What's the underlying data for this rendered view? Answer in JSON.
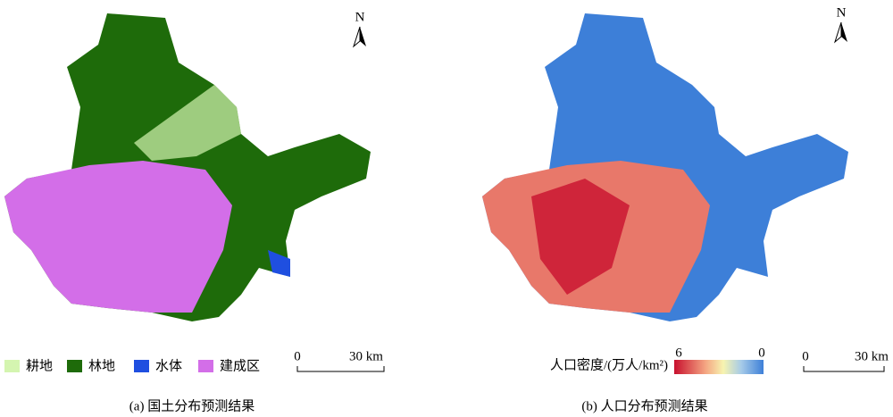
{
  "left_panel": {
    "north": "N",
    "legend": [
      {
        "name": "耕地",
        "color": "#d4f5b0"
      },
      {
        "name": "林地",
        "color": "#1e6b0a"
      },
      {
        "name": "水体",
        "color": "#1f4fe0"
      },
      {
        "name": "建成区",
        "color": "#d36ee8"
      }
    ],
    "scale_bar": {
      "start": "0",
      "end": "30 km"
    },
    "caption": "(a) 国土分布预测结果"
  },
  "right_panel": {
    "north": "N",
    "colorbar": {
      "title": "人口密度/(万人/km²)",
      "max": 6,
      "min": 0
    },
    "scale_bar": {
      "start": "0",
      "end": "30 km"
    },
    "caption": "(b) 人口分布预测结果"
  }
}
